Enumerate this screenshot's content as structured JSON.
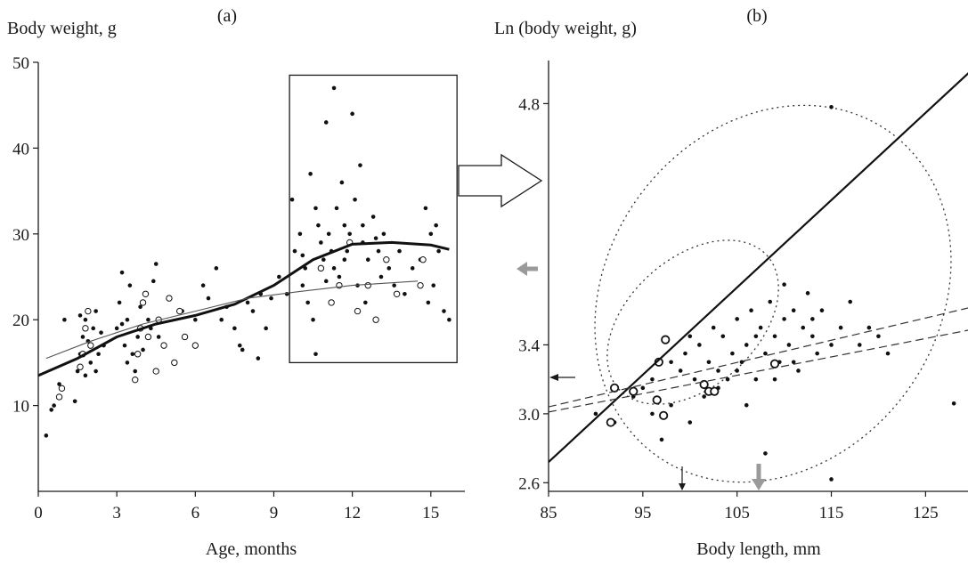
{
  "chart_data": [
    {
      "type": "scatter",
      "panel_label": "(a)",
      "ylabel": "Body weight, g",
      "xlabel": "Age, months",
      "xlim": [
        0,
        16.3
      ],
      "ylim": [
        0,
        50
      ],
      "x_ticks": [
        "0",
        "3",
        "6",
        "9",
        "12",
        "15"
      ],
      "y_ticks": [
        "10",
        "20",
        "30",
        "40",
        "50"
      ],
      "series": [
        {
          "style": "filled-dots",
          "points": [
            [
              0.3,
              6.5
            ],
            [
              0.5,
              9.5
            ],
            [
              0.6,
              10
            ],
            [
              0.8,
              12.5
            ],
            [
              1.0,
              20
            ],
            [
              1.4,
              10.5
            ],
            [
              1.5,
              14
            ],
            [
              1.6,
              16
            ],
            [
              1.7,
              18
            ],
            [
              1.8,
              20
            ],
            [
              1.9,
              17.5
            ],
            [
              2.0,
              15
            ],
            [
              2.1,
              19
            ],
            [
              2.2,
              21
            ],
            [
              2.3,
              16
            ],
            [
              2.4,
              18.5
            ],
            [
              2.5,
              17
            ],
            [
              1.6,
              20.5
            ],
            [
              2.2,
              14
            ],
            [
              1.8,
              13.5
            ],
            [
              3.0,
              19
            ],
            [
              3.1,
              22
            ],
            [
              3.2,
              25.5
            ],
            [
              3.3,
              17
            ],
            [
              3.4,
              20
            ],
            [
              3.5,
              24
            ],
            [
              3.6,
              16
            ],
            [
              3.7,
              14
            ],
            [
              3.8,
              18
            ],
            [
              3.9,
              21.5
            ],
            [
              4.0,
              16.5
            ],
            [
              4.2,
              20
            ],
            [
              4.4,
              24.5
            ],
            [
              4.5,
              26.5
            ],
            [
              4.3,
              19
            ],
            [
              4.6,
              18
            ],
            [
              3.4,
              15
            ],
            [
              3.2,
              19.5
            ],
            [
              5.5,
              21
            ],
            [
              6.0,
              20
            ],
            [
              6.3,
              24
            ],
            [
              6.5,
              22.5
            ],
            [
              6.8,
              26
            ],
            [
              7.0,
              20
            ],
            [
              7.2,
              21.5
            ],
            [
              7.5,
              19
            ],
            [
              7.7,
              17
            ],
            [
              7.8,
              16.5
            ],
            [
              8.0,
              22
            ],
            [
              8.2,
              21
            ],
            [
              8.4,
              15.5
            ],
            [
              8.5,
              23
            ],
            [
              8.7,
              19
            ],
            [
              8.9,
              22.5
            ],
            [
              9.2,
              25
            ],
            [
              9.5,
              23
            ],
            [
              9.7,
              34
            ],
            [
              9.8,
              28
            ],
            [
              10.0,
              30
            ],
            [
              10.1,
              24
            ],
            [
              10.2,
              26
            ],
            [
              10.3,
              22
            ],
            [
              10.4,
              37
            ],
            [
              10.5,
              20
            ],
            [
              10.6,
              16
            ],
            [
              10.7,
              31
            ],
            [
              10.8,
              29
            ],
            [
              10.9,
              27
            ],
            [
              11.0,
              43
            ],
            [
              11.1,
              30
            ],
            [
              11.2,
              28
            ],
            [
              11.3,
              47
            ],
            [
              11.4,
              33
            ],
            [
              11.5,
              25
            ],
            [
              11.6,
              36
            ],
            [
              11.7,
              31
            ],
            [
              11.8,
              28
            ],
            [
              11.9,
              30
            ],
            [
              12.0,
              44
            ],
            [
              12.1,
              34
            ],
            [
              12.2,
              24
            ],
            [
              12.3,
              38
            ],
            [
              12.4,
              29
            ],
            [
              12.5,
              22
            ],
            [
              12.6,
              27
            ],
            [
              12.8,
              32
            ],
            [
              13.0,
              28
            ],
            [
              13.2,
              30
            ],
            [
              13.4,
              26
            ],
            [
              13.6,
              24
            ],
            [
              13.8,
              28
            ],
            [
              14.0,
              23
            ],
            [
              14.3,
              26
            ],
            [
              14.6,
              27
            ],
            [
              14.8,
              33
            ],
            [
              15.0,
              30
            ],
            [
              15.1,
              24
            ],
            [
              15.3,
              28
            ],
            [
              15.5,
              21
            ],
            [
              15.7,
              20
            ],
            [
              11.0,
              24.5
            ],
            [
              10.6,
              33
            ],
            [
              11.7,
              27
            ],
            [
              12.4,
              31
            ],
            [
              13.1,
              25
            ],
            [
              10.1,
              27.5
            ],
            [
              11.3,
              26
            ],
            [
              12.9,
              29.5
            ],
            [
              14.9,
              22
            ],
            [
              15.2,
              31
            ]
          ]
        },
        {
          "style": "open-circles",
          "points": [
            [
              0.8,
              11
            ],
            [
              0.9,
              12
            ],
            [
              1.6,
              14.5
            ],
            [
              1.7,
              16
            ],
            [
              1.8,
              19
            ],
            [
              1.9,
              21
            ],
            [
              2.0,
              17
            ],
            [
              3.7,
              13
            ],
            [
              3.8,
              16
            ],
            [
              3.9,
              19
            ],
            [
              4.0,
              22
            ],
            [
              4.1,
              23
            ],
            [
              4.2,
              18
            ],
            [
              4.5,
              14
            ],
            [
              4.6,
              20
            ],
            [
              4.8,
              17
            ],
            [
              5.0,
              22.5
            ],
            [
              5.2,
              15
            ],
            [
              5.4,
              21
            ],
            [
              5.6,
              18
            ],
            [
              6.0,
              17
            ],
            [
              10.8,
              26
            ],
            [
              11.2,
              22
            ],
            [
              11.5,
              24
            ],
            [
              11.9,
              29
            ],
            [
              12.2,
              21
            ],
            [
              12.6,
              24
            ],
            [
              12.9,
              20
            ],
            [
              13.3,
              27
            ],
            [
              13.7,
              23
            ],
            [
              14.6,
              24
            ],
            [
              14.7,
              27
            ]
          ]
        },
        {
          "style": "thick-line",
          "points": [
            [
              0,
              13.5
            ],
            [
              1.5,
              15.5
            ],
            [
              3,
              18
            ],
            [
              4.5,
              19.5
            ],
            [
              6,
              20.5
            ],
            [
              7.5,
              21.8
            ],
            [
              9,
              24
            ],
            [
              10.5,
              27
            ],
            [
              12,
              28.8
            ],
            [
              13.5,
              29
            ],
            [
              15,
              28.7
            ],
            [
              15.7,
              28.2
            ]
          ]
        },
        {
          "style": "thin-line",
          "points": [
            [
              0.3,
              15.5
            ],
            [
              2,
              17.5
            ],
            [
              4,
              19.5
            ],
            [
              6,
              21
            ],
            [
              8,
              22.5
            ],
            [
              10,
              23.3
            ],
            [
              12,
              24
            ],
            [
              14.5,
              24.5
            ]
          ]
        }
      ]
    },
    {
      "type": "scatter",
      "panel_label": "(b)",
      "ylabel": "Ln (body weight, g)",
      "xlabel": "Body length, mm",
      "xlim": [
        85,
        129.5
      ],
      "ylim": [
        2.55,
        5.05
      ],
      "x_ticks": [
        "85",
        "95",
        "105",
        "115",
        "125"
      ],
      "y_ticks": [
        "2.6",
        "3.0",
        "3.4",
        "4.8"
      ],
      "series": [
        {
          "style": "filled-dots",
          "points": [
            [
              90,
              3.0
            ],
            [
              92,
              2.95
            ],
            [
              94,
              3.1
            ],
            [
              95,
              3.15
            ],
            [
              96,
              3.2
            ],
            [
              97,
              2.85
            ],
            [
              98,
              3.3
            ],
            [
              99,
              3.25
            ],
            [
              99.5,
              3.35
            ],
            [
              100,
              3.45
            ],
            [
              100.5,
              3.2
            ],
            [
              101,
              3.4
            ],
            [
              101.5,
              3.1
            ],
            [
              102,
              3.3
            ],
            [
              102.5,
              3.5
            ],
            [
              103,
              3.25
            ],
            [
              103.5,
              3.45
            ],
            [
              104,
              3.2
            ],
            [
              104.5,
              3.35
            ],
            [
              105,
              3.55
            ],
            [
              105.5,
              3.3
            ],
            [
              106,
              3.4
            ],
            [
              106.5,
              3.6
            ],
            [
              107,
              3.2
            ],
            [
              107.5,
              3.5
            ],
            [
              108,
              3.35
            ],
            [
              108.5,
              3.65
            ],
            [
              109,
              3.45
            ],
            [
              109.5,
              3.3
            ],
            [
              110,
              3.55
            ],
            [
              110.5,
              3.4
            ],
            [
              111,
              3.6
            ],
            [
              111.5,
              3.25
            ],
            [
              112,
              3.5
            ],
            [
              112.5,
              3.7
            ],
            [
              113,
              3.45
            ],
            [
              113.5,
              3.35
            ],
            [
              114,
              3.6
            ],
            [
              115,
              3.4
            ],
            [
              116,
              3.5
            ],
            [
              117,
              3.65
            ],
            [
              118,
              3.4
            ],
            [
              119,
              3.5
            ],
            [
              120,
              3.45
            ],
            [
              121,
              3.35
            ],
            [
              115,
              4.78
            ],
            [
              115,
              2.62
            ],
            [
              108,
              2.77
            ],
            [
              128,
              3.06
            ],
            [
              96,
              3.0
            ],
            [
              98,
              3.05
            ],
            [
              100,
              2.95
            ],
            [
              103,
              3.15
            ],
            [
              105,
              3.25
            ],
            [
              106,
              3.05
            ],
            [
              107,
              3.45
            ],
            [
              109,
              3.2
            ],
            [
              111,
              3.3
            ],
            [
              113,
              3.55
            ],
            [
              110,
              3.75
            ]
          ]
        },
        {
          "style": "open-circles",
          "points": [
            [
              92,
              3.15
            ],
            [
              94,
              3.13
            ],
            [
              96.5,
              3.08
            ],
            [
              96.7,
              3.3
            ],
            [
              97.2,
              2.99
            ],
            [
              97.4,
              3.43
            ],
            [
              101.5,
              3.17
            ],
            [
              102,
              3.13
            ],
            [
              102.6,
              3.13
            ],
            [
              109,
              3.29
            ],
            [
              91.6,
              2.95
            ]
          ]
        },
        {
          "style": "solid-regression",
          "points": [
            [
              85,
              2.72
            ],
            [
              130,
              5.0
            ]
          ]
        },
        {
          "style": "dashed-regression-1",
          "points": [
            [
              85,
              3.04
            ],
            [
              130,
              3.62
            ]
          ]
        },
        {
          "style": "dashed-regression-2",
          "points": [
            [
              85,
              3.01
            ],
            [
              130,
              3.49
            ]
          ]
        }
      ]
    }
  ],
  "connector": {
    "box_x": [
      9.6,
      16.0
    ],
    "box_y": [
      15,
      48.5
    ]
  }
}
